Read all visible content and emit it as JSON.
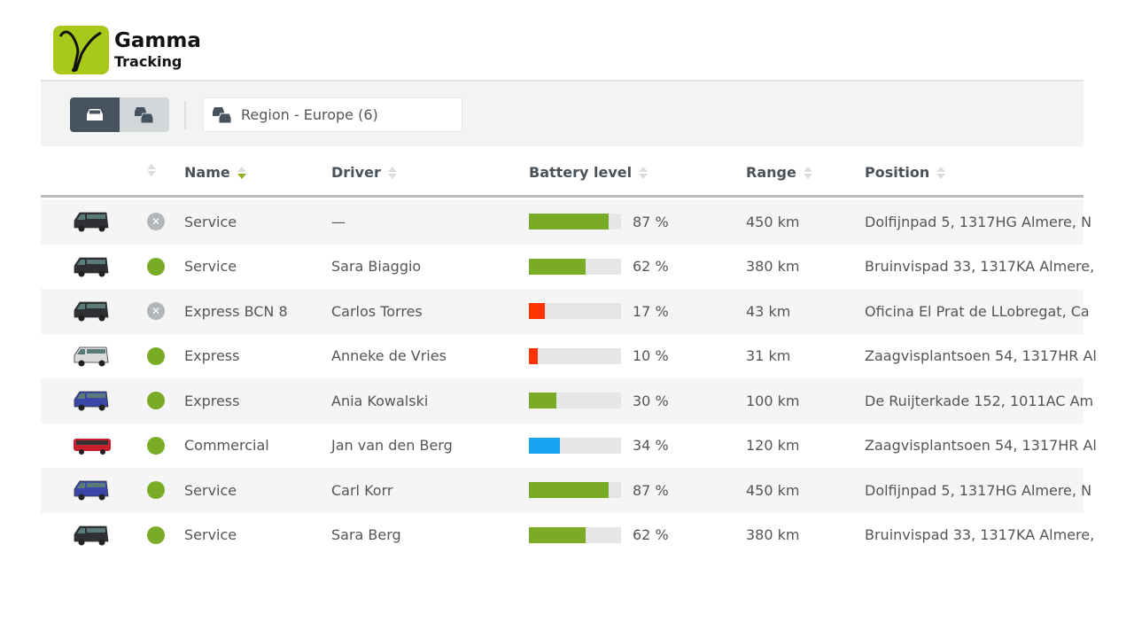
{
  "brand": {
    "name": "Gamma",
    "sub": "Tracking",
    "color": "#a8c81a"
  },
  "toolbar": {
    "single_vehicle_icon": "car-icon",
    "group_icon": "cars-icon",
    "region_label": "Region - Europe (6)"
  },
  "columns": {
    "name": "Name",
    "driver": "Driver",
    "battery": "Battery level",
    "range": "Range",
    "position": "Position",
    "sorted_by": "Name"
  },
  "status_colors": {
    "online": "#7aab27",
    "offline": "#b3b6b9"
  },
  "rows": [
    {
      "vehicle": "dark-van",
      "vcolor": "#2e3033",
      "status": "offline",
      "name": "Service",
      "driver": "—",
      "battery": 87,
      "battery_text": "87 %",
      "bcolor": "#7aab27",
      "range": "450 km",
      "position": "Dolfijnpad 5, 1317HG Almere, N"
    },
    {
      "vehicle": "dark-van",
      "vcolor": "#2e3033",
      "status": "online",
      "name": "Service",
      "driver": "Sara Biaggio",
      "battery": 62,
      "battery_text": "62 %",
      "bcolor": "#7aab27",
      "range": "380 km",
      "position": "Bruinvispad 33, 1317KA Almere,"
    },
    {
      "vehicle": "dark-van",
      "vcolor": "#2e3033",
      "status": "offline",
      "name": "Express BCN 8",
      "driver": "Carlos Torres",
      "battery": 17,
      "battery_text": "17 %",
      "bcolor": "#ff3300",
      "range": "43 km",
      "position": "Oficina El Prat de LLobregat, Ca"
    },
    {
      "vehicle": "white-van",
      "vcolor": "#d8dadc",
      "status": "online",
      "name": "Express",
      "driver": "Anneke de Vries",
      "battery": 10,
      "battery_text": "10 %",
      "bcolor": "#ff3300",
      "range": "31 km",
      "position": "Zaagvisplantsoen 54, 1317HR Al"
    },
    {
      "vehicle": "blue-van",
      "vcolor": "#3b47a8",
      "status": "online",
      "name": "Express",
      "driver": "Ania Kowalski",
      "battery": 30,
      "battery_text": "30 %",
      "bcolor": "#7aab27",
      "range": "100 km",
      "position": "De Ruijterkade 152, 1011AC Am"
    },
    {
      "vehicle": "red-bus",
      "vcolor": "#c8202a",
      "status": "online",
      "name": "Commercial",
      "driver": "Jan van den Berg",
      "battery": 34,
      "battery_text": "34 %",
      "bcolor": "#1aa3f0",
      "range": "120 km",
      "position": "Zaagvisplantsoen 54, 1317HR Al"
    },
    {
      "vehicle": "blue-van",
      "vcolor": "#3b47a8",
      "status": "online",
      "name": "Service",
      "driver": "Carl  Korr",
      "battery": 87,
      "battery_text": "87 %",
      "bcolor": "#7aab27",
      "range": "450 km",
      "position": "Dolfijnpad 5, 1317HG Almere, N"
    },
    {
      "vehicle": "dark-van",
      "vcolor": "#2e3033",
      "status": "online",
      "name": "Service",
      "driver": "Sara Berg",
      "battery": 62,
      "battery_text": "62 %",
      "bcolor": "#7aab27",
      "range": "380 km",
      "position": "Bruinvispad 33, 1317KA Almere,"
    }
  ]
}
